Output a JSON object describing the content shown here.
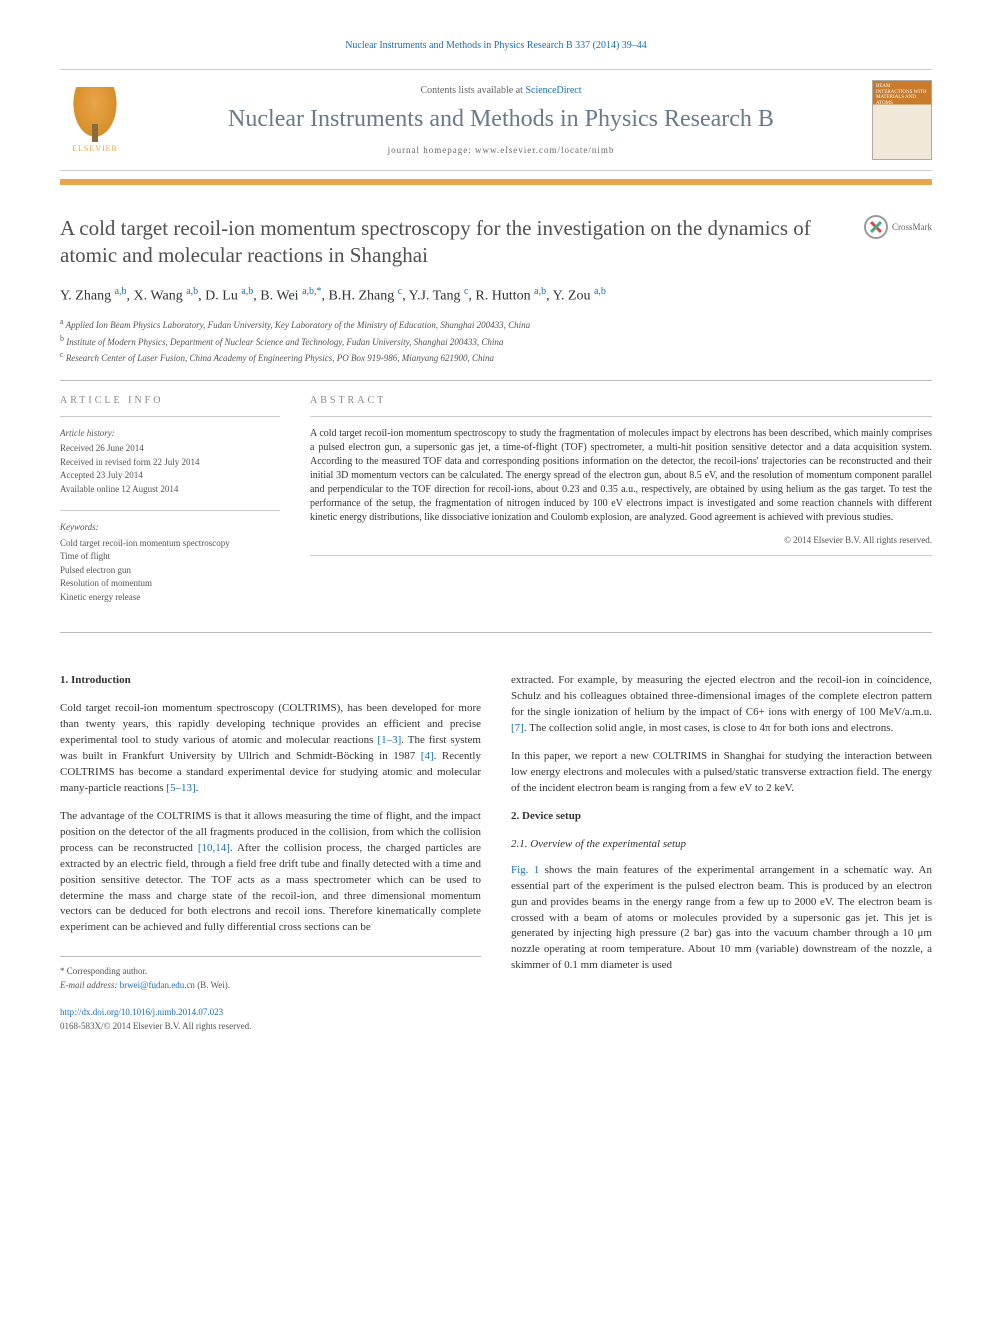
{
  "header": {
    "citation": "Nuclear Instruments and Methods in Physics Research B 337 (2014) 39–44",
    "contents_prefix": "Contents lists available at ",
    "contents_link": "ScienceDirect",
    "journal_title": "Nuclear Instruments and Methods in Physics Research B",
    "homepage_prefix": "journal homepage: ",
    "homepage_url": "www.elsevier.com/locate/nimb",
    "publisher_logo_label": "ELSEVIER",
    "cover_text": "BEAM INTERACTIONS WITH MATERIALS AND ATOMS"
  },
  "article": {
    "title": "A cold target recoil-ion momentum spectroscopy for the investigation on the dynamics of atomic and molecular reactions in Shanghai",
    "crossmark_label": "CrossMark",
    "authors_html": "Y. Zhang <sup>a,b</sup>, X. Wang <sup>a,b</sup>, D. Lu <sup>a,b</sup>, B. Wei <sup>a,b,*</sup>, B.H. Zhang <sup>c</sup>, Y.J. Tang <sup>c</sup>, R. Hutton <sup>a,b</sup>, Y. Zou <sup>a,b</sup>",
    "affiliations": [
      "a Applied Ion Beam Physics Laboratory, Fudan University, Key Laboratory of the Ministry of Education, Shanghai 200433, China",
      "b Institute of Modern Physics, Department of Nuclear Science and Technology, Fudan University, Shanghai 200433, China",
      "c Research Center of Laser Fusion, China Academy of Engineering Physics, PO Box 919-986, Mianyang 621900, China"
    ]
  },
  "info": {
    "heading": "ARTICLE INFO",
    "history_heading": "Article history:",
    "history": [
      "Received 26 June 2014",
      "Received in revised form 22 July 2014",
      "Accepted 23 July 2014",
      "Available online 12 August 2014"
    ],
    "keywords_heading": "Keywords:",
    "keywords": [
      "Cold target recoil-ion momentum spectroscopy",
      "Time of flight",
      "Pulsed electron gun",
      "Resolution of momentum",
      "Kinetic energy release"
    ]
  },
  "abstract": {
    "heading": "ABSTRACT",
    "text": "A cold target recoil-ion momentum spectroscopy to study the fragmentation of molecules impact by electrons has been described, which mainly comprises a pulsed electron gun, a supersonic gas jet, a time-of-flight (TOF) spectrometer, a multi-hit position sensitive detector and a data acquisition system. According to the measured TOF data and corresponding positions information on the detector, the recoil-ions' trajectories can be reconstructed and their initial 3D momentum vectors can be calculated. The energy spread of the electron gun, about 8.5 eV, and the resolution of momentum component parallel and perpendicular to the TOF direction for recoil-ions, about 0.23 and 0.35 a.u., respectively, are obtained by using helium as the gas target. To test the performance of the setup, the fragmentation of nitrogen induced by 100 eV electrons impact is investigated and some reaction channels with different kinetic energy distributions, like dissociative ionization and Coulomb explosion, are analyzed. Good agreement is achieved with previous studies.",
    "copyright": "© 2014 Elsevier B.V. All rights reserved."
  },
  "body": {
    "sec1_heading": "1. Introduction",
    "sec1_p1": "Cold target recoil-ion momentum spectroscopy (COLTRIMS), has been developed for more than twenty years, this rapidly developing technique provides an efficient and precise experimental tool to study various of atomic and molecular reactions [1–3]. The first system was built in Frankfurt University by Ullrich and Schmidt-Böcking in 1987 [4]. Recently COLTRIMS has become a standard experimental device for studying atomic and molecular many-particle reactions [5–13].",
    "sec1_p2": "The advantage of the COLTRIMS is that it allows measuring the time of flight, and the impact position on the detector of the all fragments produced in the collision, from which the collision process can be reconstructed [10,14]. After the collision process, the charged particles are extracted by an electric field, through a field free drift tube and finally detected with a time and position sensitive detector. The TOF acts as a mass spectrometer which can be used to determine the mass and charge state of the recoil-ion, and three dimensional momentum vectors can be deduced for both electrons and recoil ions. Therefore kinematically complete experiment can be achieved and fully differential cross sections can be",
    "sec1_p3": "extracted. For example, by measuring the ejected electron and the recoil-ion in coincidence, Schulz and his colleagues obtained three-dimensional images of the complete electron pattern for the single ionization of helium by the impact of C6+ ions with energy of 100 MeV/a.m.u. [7]. The collection solid angle, in most cases, is close to 4π for both ions and electrons.",
    "sec1_p4": "In this paper, we report a new COLTRIMS in Shanghai for studying the interaction between low energy electrons and molecules with a pulsed/static transverse extraction field. The energy of the incident electron beam is ranging from a few eV to 2 keV.",
    "sec2_heading": "2. Device setup",
    "sec2_1_heading": "2.1. Overview of the experimental setup",
    "sec2_1_p1": "Fig. 1 shows the main features of the experimental arrangement in a schematic way. An essential part of the experiment is the pulsed electron beam. This is produced by an electron gun and provides beams in the energy range from a few up to 2000 eV. The electron beam is crossed with a beam of atoms or molecules provided by a supersonic gas jet. This jet is generated by injecting high pressure (2 bar) gas into the vacuum chamber through a 10 μm nozzle operating at room temperature. About 10 mm (variable) downstream of the nozzle, a skimmer of 0.1 mm diameter is used"
  },
  "footer": {
    "corresponding_label": "* Corresponding author.",
    "email_label": "E-mail address:",
    "email": "brwei@fudan.edu.cn",
    "email_name": "(B. Wei).",
    "doi_url": "http://dx.doi.org/10.1016/j.nimb.2014.07.023",
    "issn_copyright": "0168-583X/© 2014 Elsevier B.V. All rights reserved."
  },
  "colors": {
    "link": "#1a6eb8",
    "accent": "#e8a54a",
    "journal_title": "#6a7a8a",
    "text": "#333333",
    "muted": "#666666",
    "rule": "#bbbbbb"
  }
}
